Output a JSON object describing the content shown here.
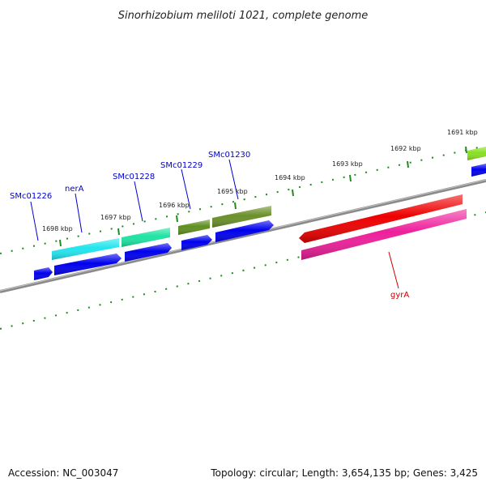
{
  "title": "Sinorhizobium meliloti 1021, complete genome",
  "footer": {
    "accession": "Accession: NC_003047",
    "summary": "Topology: circular; Length: 3,654,135 bp; Genes: 3,425"
  },
  "colors": {
    "backbone": "#808080",
    "tick": "#1f8a1f",
    "label_text": "#222222",
    "gene_label": "#0000cc",
    "highlight_label": "#cc0000",
    "cds": "#0000ee"
  },
  "scale_ticks": [
    {
      "label": "1698 kbp",
      "kbp": 1698
    },
    {
      "label": "1697 kbp",
      "kbp": 1697
    },
    {
      "label": "1696 kbp",
      "kbp": 1696
    },
    {
      "label": "1695 kbp",
      "kbp": 1695
    },
    {
      "label": "1694 kbp",
      "kbp": 1694
    },
    {
      "label": "1693 kbp",
      "kbp": 1693
    },
    {
      "label": "1692 kbp",
      "kbp": 1692
    },
    {
      "label": "1691 kbp",
      "kbp": 1691
    }
  ],
  "gene_labels": [
    {
      "label": "SMc01226",
      "name": "smc01226"
    },
    {
      "label": "nerA",
      "name": "nera"
    },
    {
      "label": "SMc01228",
      "name": "smc01228"
    },
    {
      "label": "SMc01229",
      "name": "smc01229"
    },
    {
      "label": "SMc01230",
      "name": "smc01230"
    },
    {
      "label": "gyrA",
      "name": "gyra"
    }
  ],
  "features": [
    {
      "name": "nera-gene",
      "color": "#22e5ee",
      "type": "gene"
    },
    {
      "name": "smc01228-gene",
      "color": "#1fe3a3",
      "type": "gene"
    },
    {
      "name": "smc01229-gene",
      "color": "#5f8f1f",
      "type": "gene"
    },
    {
      "name": "smc01230-gene",
      "color": "#6b8f2a",
      "type": "gene"
    },
    {
      "name": "gyra-gene",
      "color": "#ee0000",
      "type": "gene"
    },
    {
      "name": "gyra-cds",
      "color": "#ee1f9a",
      "type": "cds"
    },
    {
      "name": "right-edge-gene",
      "color": "#88e020",
      "type": "gene"
    }
  ]
}
